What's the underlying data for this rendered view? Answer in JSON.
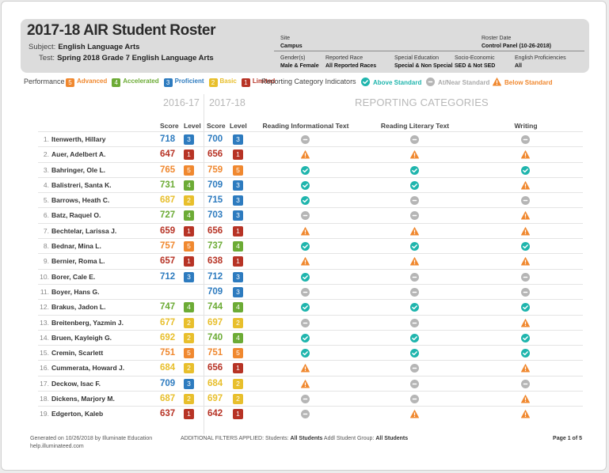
{
  "header": {
    "title": "2017-18 AIR Student Roster",
    "subject_label": "Subject:",
    "subject": "English Language Arts",
    "test_label": "Test:",
    "test": "Spring 2018 Grade 7 English Language Arts",
    "site_label": "Site",
    "site": "Campus",
    "roster_date_label": "Roster Date",
    "roster_date": "Control Panel (10-26-2018)",
    "gender_label": "Gender(s)",
    "gender": "Male & Female",
    "race_label": "Reported Race",
    "race": "All Reported Races",
    "sped_label": "Special Education",
    "sped": "Special & Non Special",
    "socio_label": "Socio-Economic",
    "socio": "SED & Not SED",
    "english_label": "English Proficiencies",
    "english": "All"
  },
  "legend": {
    "performance_label": "Performance",
    "levels": [
      {
        "num": "5",
        "label": "Advanced",
        "color": "#f0882f"
      },
      {
        "num": "4",
        "label": "Accelerated",
        "color": "#6cab35"
      },
      {
        "num": "3",
        "label": "Proficient",
        "color": "#2d7bbf"
      },
      {
        "num": "2",
        "label": "Basic",
        "color": "#e8bf2c"
      },
      {
        "num": "1",
        "label": "Limited",
        "color": "#b73325"
      }
    ],
    "indicators_label": "Reporting Category Indicators",
    "above": "Above Standard",
    "near": "At/Near Standard",
    "below": "Below Standard"
  },
  "colors": {
    "above": "#1fb5ad",
    "near": "#b5b5b5",
    "below": "#f0882f"
  },
  "table": {
    "year_prev": "2016-17",
    "year_curr": "2017-18",
    "reporting_title": "REPORTING CATEGORIES",
    "score_header": "Score",
    "level_header": "Level",
    "categories": [
      "Reading Informational Text",
      "Reading Literary Text",
      "Writing"
    ],
    "rows": [
      {
        "num": "1.",
        "name": "Itenwerth, Hillary",
        "s1": "718",
        "l1": "3",
        "s2": "700",
        "l2": "3",
        "r": [
          "near",
          "near",
          "near"
        ]
      },
      {
        "num": "2.",
        "name": "Auer, Adelbert A.",
        "s1": "647",
        "l1": "1",
        "s2": "656",
        "l2": "1",
        "r": [
          "below",
          "below",
          "below"
        ]
      },
      {
        "num": "3.",
        "name": "Bahringer, Ole L.",
        "s1": "765",
        "l1": "5",
        "s2": "759",
        "l2": "5",
        "r": [
          "above",
          "above",
          "above"
        ]
      },
      {
        "num": "4.",
        "name": "Balistreri, Santa K.",
        "s1": "731",
        "l1": "4",
        "s2": "709",
        "l2": "3",
        "r": [
          "above",
          "above",
          "below"
        ]
      },
      {
        "num": "5.",
        "name": "Barrows, Heath C.",
        "s1": "687",
        "l1": "2",
        "s2": "715",
        "l2": "3",
        "r": [
          "above",
          "near",
          "near"
        ]
      },
      {
        "num": "6.",
        "name": "Batz, Raquel O.",
        "s1": "727",
        "l1": "4",
        "s2": "703",
        "l2": "3",
        "r": [
          "near",
          "near",
          "below"
        ]
      },
      {
        "num": "7.",
        "name": "Bechtelar, Larissa J.",
        "s1": "659",
        "l1": "1",
        "s2": "656",
        "l2": "1",
        "r": [
          "below",
          "below",
          "below"
        ]
      },
      {
        "num": "8.",
        "name": "Bednar, Mina L.",
        "s1": "757",
        "l1": "5",
        "s2": "737",
        "l2": "4",
        "r": [
          "above",
          "above",
          "above"
        ]
      },
      {
        "num": "9.",
        "name": "Bernier, Roma L.",
        "s1": "657",
        "l1": "1",
        "s2": "638",
        "l2": "1",
        "r": [
          "below",
          "below",
          "below"
        ]
      },
      {
        "num": "10.",
        "name": "Borer, Cale E.",
        "s1": "712",
        "l1": "3",
        "s2": "712",
        "l2": "3",
        "r": [
          "above",
          "near",
          "near"
        ]
      },
      {
        "num": "11.",
        "name": "Boyer, Hans G.",
        "s1": "",
        "l1": "",
        "s2": "709",
        "l2": "3",
        "r": [
          "near",
          "near",
          "near"
        ]
      },
      {
        "num": "12.",
        "name": "Brakus, Jadon L.",
        "s1": "747",
        "l1": "4",
        "s2": "744",
        "l2": "4",
        "r": [
          "above",
          "above",
          "above"
        ]
      },
      {
        "num": "13.",
        "name": "Breitenberg, Yazmin J.",
        "s1": "677",
        "l1": "2",
        "s2": "697",
        "l2": "2",
        "r": [
          "near",
          "near",
          "below"
        ]
      },
      {
        "num": "14.",
        "name": "Bruen, Kayleigh G.",
        "s1": "692",
        "l1": "2",
        "s2": "740",
        "l2": "4",
        "r": [
          "above",
          "above",
          "above"
        ]
      },
      {
        "num": "15.",
        "name": "Cremin, Scarlett",
        "s1": "751",
        "l1": "5",
        "s2": "751",
        "l2": "5",
        "r": [
          "above",
          "above",
          "above"
        ]
      },
      {
        "num": "16.",
        "name": "Cummerata, Howard J.",
        "s1": "684",
        "l1": "2",
        "s2": "656",
        "l2": "1",
        "r": [
          "below",
          "near",
          "below"
        ]
      },
      {
        "num": "17.",
        "name": "Deckow, Isac F.",
        "s1": "709",
        "l1": "3",
        "s2": "684",
        "l2": "2",
        "r": [
          "below",
          "near",
          "near"
        ]
      },
      {
        "num": "18.",
        "name": "Dickens, Marjory M.",
        "s1": "687",
        "l1": "2",
        "s2": "697",
        "l2": "2",
        "r": [
          "near",
          "near",
          "below"
        ]
      },
      {
        "num": "19.",
        "name": "Edgerton, Kaleb",
        "s1": "637",
        "l1": "1",
        "s2": "642",
        "l2": "1",
        "r": [
          "near",
          "below",
          "below"
        ]
      }
    ]
  },
  "footer": {
    "generated": "Generated on 10/26/2018 by Illuminate Education",
    "site": "help.illuminateed.com",
    "filters_label": "ADDITIONAL FILTERS APPLIED:",
    "students_label": "Students:",
    "students": "All Students",
    "group_label": "Addl Student Group:",
    "group": "All Students",
    "page": "Page 1 of 5"
  }
}
